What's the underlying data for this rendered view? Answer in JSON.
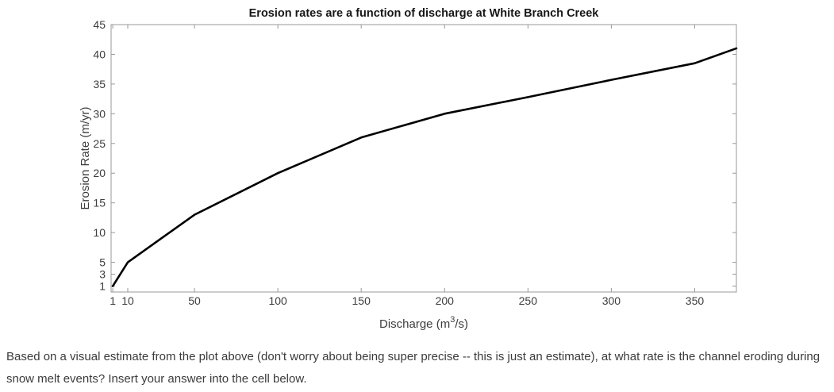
{
  "chart_data": {
    "type": "line",
    "title": "Erosion rates are a function of discharge at White Branch Creek",
    "xlabel": "Discharge (m^3/s)",
    "ylabel": "Erosion Rate (m/yr)",
    "xlim": [
      0,
      375
    ],
    "ylim": [
      0,
      45
    ],
    "x_ticks": [
      1,
      10,
      50,
      100,
      150,
      200,
      250,
      300,
      350
    ],
    "y_ticks": [
      1,
      3,
      5,
      10,
      15,
      20,
      25,
      30,
      35,
      40,
      45
    ],
    "grid": false,
    "legend": "none",
    "line_color": "#000000",
    "line_width": 2.6,
    "axis_color": "#999999",
    "tick_label_color": "#3d3d3d",
    "title_color": "#171717",
    "series": [
      {
        "name": "erosion-rate-curve",
        "x": [
          1,
          10,
          30,
          50,
          100,
          150,
          200,
          250,
          300,
          350,
          375
        ],
        "y": [
          1,
          5,
          9,
          13,
          20,
          26,
          30,
          32.8,
          35.7,
          38.5,
          41
        ]
      }
    ]
  },
  "caption": {
    "text": "Based on a visual estimate from the plot above (don't worry about being super precise -- this is just an estimate), at what rate is the channel eroding during snow melt events? Insert your answer into the cell below."
  }
}
